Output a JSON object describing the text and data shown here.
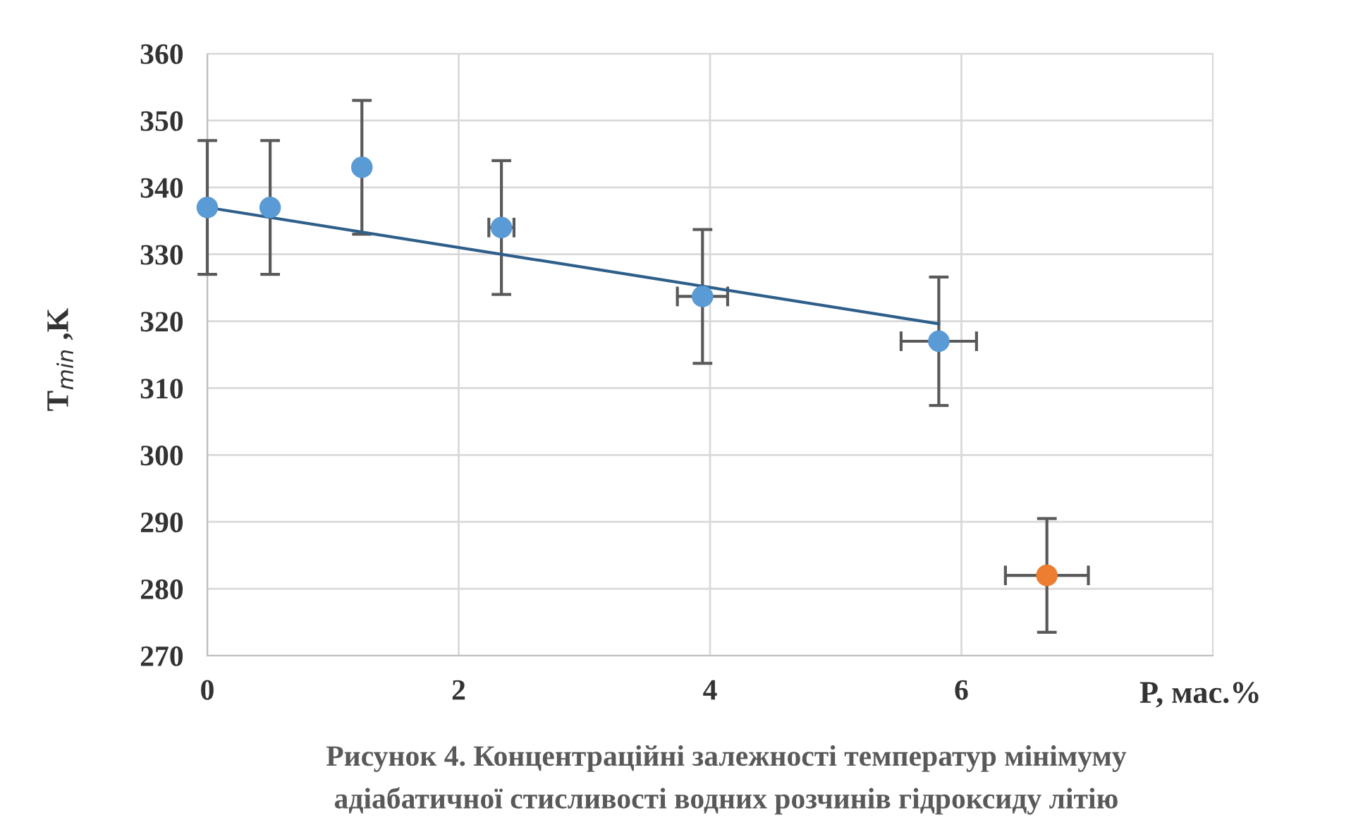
{
  "chart_data": {
    "type": "scatter",
    "xlabel": "P, мас.%",
    "ylabel": "T$_{min}$ ,K",
    "annotations": [
      "Рисунок 4. Концентраційні залежності температур мінімуму",
      "адіабатичної стисливості водних розчинів гідроксиду літію"
    ],
    "series": [
      {
        "color": "#5b9bd5",
        "marker": "circle",
        "x": [
          0,
          0.5,
          1.23,
          2.34,
          3.94,
          5.82
        ],
        "values": [
          337,
          337,
          343,
          334,
          323.7,
          317
        ],
        "errors": [
          10,
          10,
          10,
          10,
          10,
          9.6
        ],
        "xerrors": [
          null,
          null,
          null,
          0.1,
          0.2,
          0.3
        ]
      },
      {
        "color": "#ed7d31",
        "marker": "circle",
        "x": [
          6.68
        ],
        "values": [
          282
        ],
        "errors": [
          8.5
        ],
        "xerrors": [
          0.33
        ]
      },
      {
        "type": "line",
        "color": "#2e5f8a",
        "x": [
          0,
          5.82
        ],
        "values": [
          337,
          319.6
        ]
      }
    ],
    "xlim": [
      0,
      8
    ],
    "xticks": [
      0,
      2,
      4,
      6
    ],
    "ylim": [
      270,
      360
    ],
    "yticks": [
      270,
      280,
      290,
      300,
      310,
      320,
      330,
      340,
      350,
      360
    ],
    "grid": true
  }
}
